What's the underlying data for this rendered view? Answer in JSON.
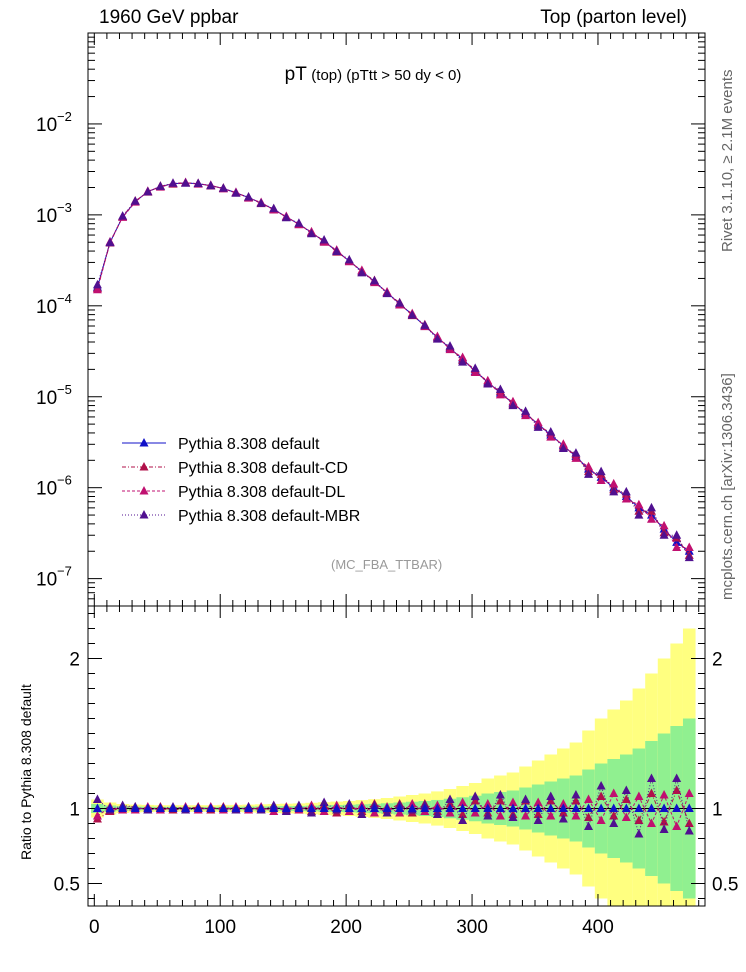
{
  "header": {
    "left": "1960 GeV ppbar",
    "right": "Top (parton level)"
  },
  "side": {
    "rivet": "Rivet 3.1.10, ≥ 2.1M events",
    "mcplots": "mcplots.cern.ch [arXiv:1306.3436]"
  },
  "colors": {
    "default": "#1010c8",
    "cd": "#b0104a",
    "dl": "#c01070",
    "mbr": "#501090",
    "band_yellow": "#ffff80",
    "band_green": "#90f090"
  },
  "chart_data": {
    "type": "line",
    "title_main": "pT",
    "title_sub": "(top) (pTtt > 50 dy < 0)",
    "watermark": "(MC_FBA_TTBAR)",
    "ratio_ylabel": "Ratio to Pythia 8.308 default",
    "main_yscale": "log",
    "main_ylim": [
      5e-08,
      0.1
    ],
    "main_yticks": [
      {
        "v": 1e-07,
        "base": "10",
        "exp": "−7"
      },
      {
        "v": 1e-06,
        "base": "10",
        "exp": "−6"
      },
      {
        "v": 1e-05,
        "base": "10",
        "exp": "−5"
      },
      {
        "v": 0.0001,
        "base": "10",
        "exp": "−4"
      },
      {
        "v": 0.001,
        "base": "10",
        "exp": "−3"
      },
      {
        "v": 0.01,
        "base": "10",
        "exp": "−2"
      }
    ],
    "xlim": [
      -5,
      485
    ],
    "xticks": [
      0,
      100,
      200,
      300,
      400
    ],
    "ratio_ylim": [
      0.35,
      2.35
    ],
    "ratio_yticks": [
      0.5,
      1,
      2
    ],
    "legend": [
      "Pythia 8.308 default",
      "Pythia 8.308 default-CD",
      "Pythia 8.308 default-DL",
      "Pythia 8.308 default-MBR"
    ],
    "series": [
      {
        "name": "Pythia 8.308 default",
        "x": [
          2.5,
          12.5,
          22.5,
          32.5,
          42.5,
          52.5,
          62.5,
          72.5,
          82.5,
          92.5,
          102.5,
          112.5,
          122.5,
          132.5,
          142.5,
          152.5,
          162.5,
          172.5,
          182.5,
          192.5,
          202.5,
          212.5,
          222.5,
          232.5,
          242.5,
          252.5,
          262.5,
          272.5,
          282.5,
          292.5,
          302.5,
          312.5,
          322.5,
          332.5,
          342.5,
          352.5,
          362.5,
          372.5,
          382.5,
          392.5,
          402.5,
          412.5,
          422.5,
          432.5,
          442.5,
          452.5,
          462.5,
          472.5
        ],
        "values": [
          0.00016,
          0.0005,
          0.00095,
          0.0014,
          0.0018,
          0.00205,
          0.0022,
          0.00225,
          0.0022,
          0.0021,
          0.00195,
          0.00175,
          0.00155,
          0.00135,
          0.00115,
          0.00095,
          0.00079,
          0.00064,
          0.00051,
          0.0004,
          0.00031,
          0.00024,
          0.000185,
          0.00014,
          0.000105,
          8e-05,
          6e-05,
          4.5e-05,
          3.4e-05,
          2.6e-05,
          1.9e-05,
          1.45e-05,
          1.1e-05,
          8.5e-06,
          6.5e-06,
          5e-06,
          3.8e-06,
          2.9e-06,
          2.2e-06,
          1.6e-06,
          1.3e-06,
          1e-06,
          8e-07,
          6e-07,
          5e-07,
          3.5e-07,
          2.5e-07,
          2e-07
        ]
      },
      {
        "name": "Pythia 8.308 default-CD",
        "x": [
          2.5,
          12.5,
          22.5,
          32.5,
          42.5,
          52.5,
          62.5,
          72.5,
          82.5,
          92.5,
          102.5,
          112.5,
          122.5,
          132.5,
          142.5,
          152.5,
          162.5,
          172.5,
          182.5,
          192.5,
          202.5,
          212.5,
          222.5,
          232.5,
          242.5,
          252.5,
          262.5,
          272.5,
          282.5,
          292.5,
          302.5,
          312.5,
          322.5,
          332.5,
          342.5,
          352.5,
          362.5,
          372.5,
          382.5,
          392.5,
          402.5,
          412.5,
          422.5,
          432.5,
          442.5,
          452.5,
          462.5,
          472.5
        ],
        "values": [
          0.000155,
          0.00049,
          0.00096,
          0.00142,
          0.00178,
          0.00207,
          0.00218,
          0.00224,
          0.00222,
          0.00208,
          0.00197,
          0.00174,
          0.00156,
          0.00133,
          0.00116,
          0.00094,
          0.0008,
          0.00063,
          0.00052,
          0.00039,
          0.000315,
          0.000235,
          0.00019,
          0.000138,
          0.000108,
          7.8e-05,
          6.2e-05,
          4.4e-05,
          3.5e-05,
          2.5e-05,
          2e-05,
          1.4e-05,
          1.15e-05,
          8.2e-06,
          6.8e-06,
          4.8e-06,
          4e-06,
          2.8e-06,
          2.3e-06,
          1.5e-06,
          1.4e-06,
          9.5e-07,
          8.5e-07,
          5.5e-07,
          5.5e-07,
          3.2e-07,
          2.8e-07,
          1.8e-07
        ]
      },
      {
        "name": "Pythia 8.308 default-DL",
        "x": [
          2.5,
          12.5,
          22.5,
          32.5,
          42.5,
          52.5,
          62.5,
          72.5,
          82.5,
          92.5,
          102.5,
          112.5,
          122.5,
          132.5,
          142.5,
          152.5,
          162.5,
          172.5,
          182.5,
          192.5,
          202.5,
          212.5,
          222.5,
          232.5,
          242.5,
          252.5,
          262.5,
          272.5,
          282.5,
          292.5,
          302.5,
          312.5,
          322.5,
          332.5,
          342.5,
          352.5,
          362.5,
          372.5,
          382.5,
          392.5,
          402.5,
          412.5,
          422.5,
          432.5,
          442.5,
          452.5,
          462.5,
          472.5
        ],
        "values": [
          0.00015,
          0.000505,
          0.00094,
          0.00138,
          0.00182,
          0.00202,
          0.00221,
          0.00227,
          0.00218,
          0.00212,
          0.00193,
          0.00177,
          0.00153,
          0.00137,
          0.00113,
          0.00096,
          0.00078,
          0.00065,
          0.0005,
          0.00041,
          0.000305,
          0.000245,
          0.00018,
          0.000142,
          0.000102,
          8.2e-05,
          5.9e-05,
          4.6e-05,
          3.3e-05,
          2.7e-05,
          1.85e-05,
          1.5e-05,
          1.05e-05,
          8.8e-06,
          6.2e-06,
          5.2e-06,
          3.6e-06,
          3e-06,
          2.1e-06,
          1.7e-06,
          1.2e-06,
          1.1e-06,
          7.5e-07,
          6.5e-07,
          4.5e-07,
          3.8e-07,
          2.2e-07,
          2.2e-07
        ]
      },
      {
        "name": "Pythia 8.308 default-MBR",
        "x": [
          2.5,
          12.5,
          22.5,
          32.5,
          42.5,
          52.5,
          62.5,
          72.5,
          82.5,
          92.5,
          102.5,
          112.5,
          122.5,
          132.5,
          142.5,
          152.5,
          162.5,
          172.5,
          182.5,
          192.5,
          202.5,
          212.5,
          222.5,
          232.5,
          242.5,
          252.5,
          262.5,
          272.5,
          282.5,
          292.5,
          302.5,
          312.5,
          322.5,
          332.5,
          342.5,
          352.5,
          362.5,
          372.5,
          382.5,
          392.5,
          402.5,
          412.5,
          422.5,
          432.5,
          442.5,
          452.5,
          462.5,
          472.5
        ],
        "values": [
          0.00017,
          0.000495,
          0.00097,
          0.00141,
          0.00179,
          0.00206,
          0.00223,
          0.00223,
          0.00221,
          0.00209,
          0.00196,
          0.00173,
          0.00157,
          0.00134,
          0.00117,
          0.00093,
          0.00081,
          0.00062,
          0.00053,
          0.000395,
          0.00032,
          0.00023,
          0.000188,
          0.000136,
          0.000107,
          7.9e-05,
          6.1e-05,
          4.3e-05,
          3.6e-05,
          2.4e-05,
          2.05e-05,
          1.38e-05,
          1.2e-05,
          8e-06,
          6.9e-06,
          4.6e-06,
          4.1e-06,
          2.7e-06,
          2.4e-06,
          1.4e-06,
          1.5e-06,
          9e-07,
          9e-07,
          5e-07,
          6e-07,
          3e-07,
          3e-07,
          1.7e-07
        ]
      }
    ],
    "ratio_series": [
      {
        "name": "Pythia 8.308 default-CD",
        "x": [
          2.5,
          12.5,
          22.5,
          32.5,
          42.5,
          52.5,
          62.5,
          72.5,
          82.5,
          92.5,
          102.5,
          112.5,
          122.5,
          132.5,
          142.5,
          152.5,
          162.5,
          172.5,
          182.5,
          192.5,
          202.5,
          212.5,
          222.5,
          232.5,
          242.5,
          252.5,
          262.5,
          272.5,
          282.5,
          292.5,
          302.5,
          312.5,
          322.5,
          332.5,
          342.5,
          352.5,
          362.5,
          372.5,
          382.5,
          392.5,
          402.5,
          412.5,
          422.5,
          432.5,
          442.5,
          452.5,
          462.5,
          472.5
        ],
        "values": [
          0.93,
          0.98,
          1.01,
          1.01,
          0.99,
          1.01,
          0.99,
          1.0,
          1.01,
          0.99,
          1.01,
          0.99,
          1.01,
          0.99,
          1.01,
          0.99,
          1.01,
          0.98,
          1.02,
          0.97,
          1.02,
          0.98,
          1.03,
          0.99,
          1.03,
          0.97,
          1.03,
          0.98,
          1.03,
          0.96,
          1.05,
          0.97,
          1.05,
          0.96,
          1.05,
          0.96,
          1.05,
          0.97,
          1.05,
          0.94,
          1.08,
          0.95,
          1.06,
          0.92,
          1.1,
          0.91,
          1.12,
          0.9
        ]
      },
      {
        "name": "Pythia 8.308 default-DL",
        "x": [
          2.5,
          12.5,
          22.5,
          32.5,
          42.5,
          52.5,
          62.5,
          72.5,
          82.5,
          92.5,
          102.5,
          112.5,
          122.5,
          132.5,
          142.5,
          152.5,
          162.5,
          172.5,
          182.5,
          192.5,
          202.5,
          212.5,
          222.5,
          232.5,
          242.5,
          252.5,
          262.5,
          272.5,
          282.5,
          292.5,
          302.5,
          312.5,
          322.5,
          332.5,
          342.5,
          352.5,
          362.5,
          372.5,
          382.5,
          392.5,
          402.5,
          412.5,
          422.5,
          432.5,
          442.5,
          452.5,
          462.5,
          472.5
        ],
        "values": [
          0.95,
          1.01,
          0.99,
          0.99,
          1.01,
          0.99,
          1.0,
          1.01,
          0.99,
          1.01,
          0.99,
          1.01,
          0.99,
          1.01,
          0.98,
          1.01,
          0.99,
          1.02,
          0.98,
          1.02,
          0.98,
          1.02,
          0.97,
          1.01,
          0.97,
          1.03,
          0.98,
          1.02,
          0.97,
          1.04,
          0.97,
          1.03,
          0.95,
          1.04,
          0.95,
          1.04,
          0.95,
          1.03,
          0.95,
          1.06,
          0.92,
          1.1,
          0.94,
          1.08,
          0.9,
          1.09,
          0.88,
          1.1
        ]
      },
      {
        "name": "Pythia 8.308 default-MBR",
        "x": [
          2.5,
          12.5,
          22.5,
          32.5,
          42.5,
          52.5,
          62.5,
          72.5,
          82.5,
          92.5,
          102.5,
          112.5,
          122.5,
          132.5,
          142.5,
          152.5,
          162.5,
          172.5,
          182.5,
          192.5,
          202.5,
          212.5,
          222.5,
          232.5,
          242.5,
          252.5,
          262.5,
          272.5,
          282.5,
          292.5,
          302.5,
          312.5,
          322.5,
          332.5,
          342.5,
          352.5,
          362.5,
          372.5,
          382.5,
          392.5,
          402.5,
          412.5,
          422.5,
          432.5,
          442.5,
          452.5,
          462.5,
          472.5
        ],
        "values": [
          1.06,
          0.99,
          1.02,
          1.01,
          0.99,
          1.0,
          1.01,
          0.99,
          1.0,
          1.0,
          1.0,
          0.99,
          1.01,
          0.99,
          1.02,
          0.98,
          1.02,
          0.97,
          1.04,
          0.99,
          1.03,
          0.96,
          1.02,
          0.97,
          1.02,
          0.99,
          1.02,
          0.96,
          1.06,
          0.92,
          1.08,
          0.95,
          1.09,
          0.94,
          1.06,
          0.92,
          1.08,
          0.93,
          1.09,
          0.88,
          1.15,
          0.9,
          1.12,
          0.83,
          1.2,
          0.86,
          1.2,
          0.85
        ]
      }
    ],
    "bands": {
      "x": [
        2.5,
        12.5,
        22.5,
        32.5,
        42.5,
        52.5,
        62.5,
        72.5,
        82.5,
        92.5,
        102.5,
        112.5,
        122.5,
        132.5,
        142.5,
        152.5,
        162.5,
        172.5,
        182.5,
        192.5,
        202.5,
        212.5,
        222.5,
        232.5,
        242.5,
        252.5,
        262.5,
        272.5,
        282.5,
        292.5,
        302.5,
        312.5,
        322.5,
        332.5,
        342.5,
        352.5,
        362.5,
        372.5,
        382.5,
        392.5,
        402.5,
        412.5,
        422.5,
        432.5,
        442.5,
        452.5,
        462.5,
        472.5
      ],
      "green": [
        0.03,
        0.02,
        0.015,
        0.013,
        0.012,
        0.011,
        0.011,
        0.011,
        0.011,
        0.011,
        0.012,
        0.012,
        0.013,
        0.014,
        0.015,
        0.016,
        0.017,
        0.019,
        0.021,
        0.023,
        0.025,
        0.028,
        0.031,
        0.035,
        0.04,
        0.045,
        0.05,
        0.057,
        0.065,
        0.075,
        0.085,
        0.1,
        0.11,
        0.12,
        0.14,
        0.16,
        0.18,
        0.2,
        0.22,
        0.26,
        0.3,
        0.33,
        0.36,
        0.4,
        0.45,
        0.5,
        0.55,
        0.6
      ],
      "yellow": [
        0.06,
        0.04,
        0.03,
        0.026,
        0.024,
        0.022,
        0.022,
        0.022,
        0.022,
        0.022,
        0.024,
        0.024,
        0.026,
        0.028,
        0.03,
        0.032,
        0.034,
        0.038,
        0.042,
        0.046,
        0.05,
        0.056,
        0.062,
        0.07,
        0.08,
        0.09,
        0.1,
        0.114,
        0.13,
        0.15,
        0.17,
        0.2,
        0.22,
        0.24,
        0.28,
        0.32,
        0.36,
        0.4,
        0.44,
        0.52,
        0.6,
        0.66,
        0.72,
        0.8,
        0.9,
        1.0,
        1.1,
        1.2
      ]
    }
  }
}
